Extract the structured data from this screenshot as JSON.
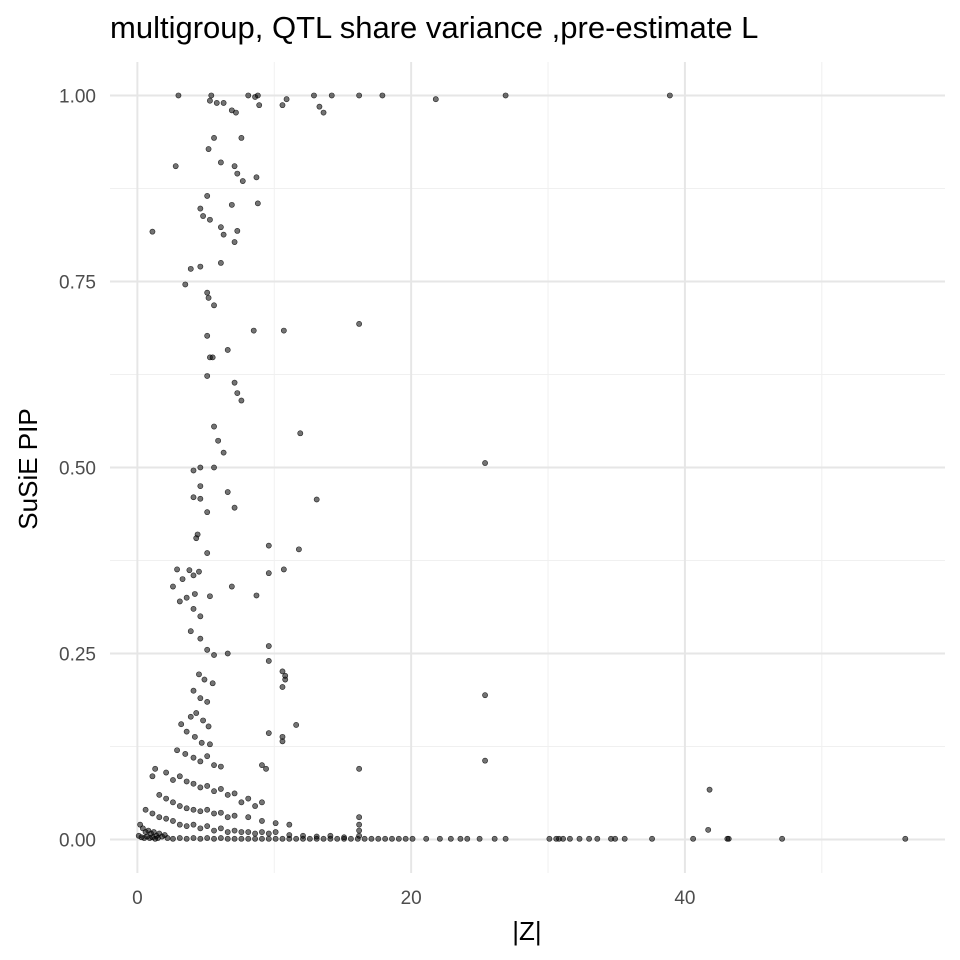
{
  "chart_data": {
    "type": "scatter",
    "title": "multigroup, QTL share variance ,pre-estimate L",
    "xlabel": "|Z|",
    "ylabel": "SuSiE PIP",
    "xlim": [
      -2,
      59
    ],
    "ylim": [
      -0.045,
      1.045
    ],
    "x_ticks": [
      0,
      20,
      40
    ],
    "x_tick_labels": [
      "0",
      "20",
      "40"
    ],
    "x_minor_ticks": [
      10,
      30,
      50
    ],
    "y_ticks": [
      0,
      0.25,
      0.5,
      0.75,
      1.0
    ],
    "y_tick_labels": [
      "0.00",
      "0.25",
      "0.50",
      "0.75",
      "1.00"
    ],
    "y_minor_ticks": [
      0.125,
      0.375,
      0.625,
      0.875
    ],
    "grid": true,
    "point_color": "#000000",
    "point_opacity": 0.55,
    "points": [
      [
        3,
        1.0
      ],
      [
        5.4,
        1.0
      ],
      [
        5.3,
        0.993
      ],
      [
        5.8,
        0.99
      ],
      [
        6.3,
        0.99
      ],
      [
        6.9,
        0.98
      ],
      [
        7.2,
        0.977
      ],
      [
        8.1,
        1.0
      ],
      [
        8.8,
        1.0
      ],
      [
        8.9,
        0.987
      ],
      [
        8.6,
        0.998
      ],
      [
        10.6,
        0.987
      ],
      [
        10.9,
        0.995
      ],
      [
        12.9,
        1.0
      ],
      [
        13.3,
        0.985
      ],
      [
        13.6,
        0.977
      ],
      [
        14.2,
        1.0
      ],
      [
        16.2,
        1.0
      ],
      [
        17.9,
        1.0
      ],
      [
        21.8,
        0.995
      ],
      [
        26.9,
        1.0
      ],
      [
        38.9,
        1.0
      ],
      [
        2.8,
        0.905
      ],
      [
        5.2,
        0.928
      ],
      [
        5.6,
        0.943
      ],
      [
        6.1,
        0.91
      ],
      [
        7.1,
        0.905
      ],
      [
        7.3,
        0.895
      ],
      [
        7.7,
        0.885
      ],
      [
        8.7,
        0.89
      ],
      [
        7.6,
        0.943
      ],
      [
        1.1,
        0.817
      ],
      [
        4.6,
        0.848
      ],
      [
        4.8,
        0.838
      ],
      [
        5.1,
        0.865
      ],
      [
        5.3,
        0.833
      ],
      [
        6.1,
        0.823
      ],
      [
        6.3,
        0.813
      ],
      [
        6.9,
        0.853
      ],
      [
        7.3,
        0.818
      ],
      [
        7.1,
        0.803
      ],
      [
        8.8,
        0.855
      ],
      [
        3.5,
        0.746
      ],
      [
        3.9,
        0.767
      ],
      [
        4.6,
        0.77
      ],
      [
        5.1,
        0.735
      ],
      [
        5.2,
        0.728
      ],
      [
        5.6,
        0.718
      ],
      [
        6.1,
        0.775
      ],
      [
        5.1,
        0.677
      ],
      [
        6.6,
        0.658
      ],
      [
        5.3,
        0.648
      ],
      [
        5.5,
        0.648
      ],
      [
        8.5,
        0.684
      ],
      [
        10.7,
        0.684
      ],
      [
        16.2,
        0.693
      ],
      [
        5.1,
        0.623
      ],
      [
        7.1,
        0.614
      ],
      [
        7.3,
        0.6
      ],
      [
        7.6,
        0.59
      ],
      [
        5.6,
        0.555
      ],
      [
        5.9,
        0.536
      ],
      [
        6.3,
        0.52
      ],
      [
        4.1,
        0.496
      ],
      [
        4.6,
        0.5
      ],
      [
        5.6,
        0.5
      ],
      [
        4.1,
        0.46
      ],
      [
        4.6,
        0.475
      ],
      [
        6.6,
        0.467
      ],
      [
        7.1,
        0.446
      ],
      [
        4.6,
        0.458
      ],
      [
        5.1,
        0.44
      ],
      [
        11.9,
        0.546
      ],
      [
        25.4,
        0.506
      ],
      [
        13.1,
        0.457
      ],
      [
        9.6,
        0.395
      ],
      [
        11.8,
        0.39
      ],
      [
        4.3,
        0.405
      ],
      [
        4.4,
        0.41
      ],
      [
        5.1,
        0.385
      ],
      [
        3.8,
        0.362
      ],
      [
        4.1,
        0.355
      ],
      [
        4.5,
        0.36
      ],
      [
        2.9,
        0.363
      ],
      [
        2.6,
        0.34
      ],
      [
        3.3,
        0.35
      ],
      [
        3.6,
        0.325
      ],
      [
        4.2,
        0.33
      ],
      [
        5.3,
        0.327
      ],
      [
        6.9,
        0.34
      ],
      [
        8.7,
        0.328
      ],
      [
        9.6,
        0.358
      ],
      [
        10.7,
        0.363
      ],
      [
        3.1,
        0.32
      ],
      [
        4.1,
        0.31
      ],
      [
        4.6,
        0.3
      ],
      [
        3.9,
        0.28
      ],
      [
        4.6,
        0.27
      ],
      [
        5.1,
        0.255
      ],
      [
        5.6,
        0.248
      ],
      [
        6.6,
        0.25
      ],
      [
        9.6,
        0.26
      ],
      [
        9.6,
        0.24
      ],
      [
        10.6,
        0.226
      ],
      [
        10.8,
        0.22
      ],
      [
        10.6,
        0.205
      ],
      [
        10.8,
        0.215
      ],
      [
        25.4,
        0.194
      ],
      [
        11.6,
        0.154
      ],
      [
        10.6,
        0.138
      ],
      [
        10.6,
        0.132
      ],
      [
        9.6,
        0.143
      ],
      [
        9.1,
        0.1
      ],
      [
        9.4,
        0.095
      ],
      [
        25.4,
        0.106
      ],
      [
        16.2,
        0.095
      ],
      [
        41.8,
        0.067
      ],
      [
        41.7,
        0.013
      ],
      [
        4.5,
        0.222
      ],
      [
        4.9,
        0.215
      ],
      [
        5.5,
        0.21
      ],
      [
        4.1,
        0.2
      ],
      [
        4.6,
        0.19
      ],
      [
        5.1,
        0.185
      ],
      [
        3.9,
        0.165
      ],
      [
        4.3,
        0.17
      ],
      [
        4.8,
        0.16
      ],
      [
        5.2,
        0.152
      ],
      [
        3.2,
        0.155
      ],
      [
        3.6,
        0.145
      ],
      [
        4.2,
        0.138
      ],
      [
        4.7,
        0.13
      ],
      [
        5.3,
        0.128
      ],
      [
        2.9,
        0.12
      ],
      [
        3.5,
        0.115
      ],
      [
        4.1,
        0.11
      ],
      [
        4.6,
        0.105
      ],
      [
        5.1,
        0.112
      ],
      [
        5.6,
        0.1
      ],
      [
        6.1,
        0.098
      ],
      [
        1.3,
        0.095
      ],
      [
        1.1,
        0.085
      ],
      [
        2.1,
        0.09
      ],
      [
        2.6,
        0.08
      ],
      [
        3.1,
        0.085
      ],
      [
        3.6,
        0.078
      ],
      [
        4.1,
        0.075
      ],
      [
        4.6,
        0.07
      ],
      [
        5.1,
        0.072
      ],
      [
        5.6,
        0.065
      ],
      [
        6.1,
        0.068
      ],
      [
        6.6,
        0.06
      ],
      [
        7.1,
        0.062
      ],
      [
        7.6,
        0.05
      ],
      [
        8.1,
        0.055
      ],
      [
        8.6,
        0.045
      ],
      [
        9.1,
        0.05
      ],
      [
        1.6,
        0.06
      ],
      [
        2.1,
        0.055
      ],
      [
        2.6,
        0.05
      ],
      [
        3.1,
        0.045
      ],
      [
        3.6,
        0.042
      ],
      [
        4.1,
        0.04
      ],
      [
        4.6,
        0.038
      ],
      [
        5.1,
        0.04
      ],
      [
        5.6,
        0.035
      ],
      [
        6.1,
        0.036
      ],
      [
        6.6,
        0.03
      ],
      [
        7.1,
        0.032
      ],
      [
        8.1,
        0.03
      ],
      [
        9.1,
        0.025
      ],
      [
        10.1,
        0.022
      ],
      [
        11.1,
        0.02
      ],
      [
        0.6,
        0.04
      ],
      [
        1.1,
        0.035
      ],
      [
        1.6,
        0.03
      ],
      [
        2.1,
        0.028
      ],
      [
        2.6,
        0.025
      ],
      [
        3.1,
        0.02
      ],
      [
        3.6,
        0.018
      ],
      [
        4.1,
        0.02
      ],
      [
        4.6,
        0.015
      ],
      [
        5.1,
        0.018
      ],
      [
        5.6,
        0.012
      ],
      [
        6.1,
        0.015
      ],
      [
        6.6,
        0.01
      ],
      [
        7.1,
        0.012
      ],
      [
        7.6,
        0.01
      ],
      [
        8.1,
        0.01
      ],
      [
        8.6,
        0.008
      ],
      [
        9.1,
        0.01
      ],
      [
        9.6,
        0.008
      ],
      [
        10.1,
        0.01
      ],
      [
        11.1,
        0.006
      ],
      [
        12.1,
        0.005
      ],
      [
        13.1,
        0.004
      ],
      [
        14.1,
        0.005
      ],
      [
        15.1,
        0.003
      ],
      [
        16.2,
        0.03
      ],
      [
        16.2,
        0.02
      ],
      [
        16.2,
        0.012
      ],
      [
        16.2,
        0.005
      ],
      [
        0.2,
        0.02
      ],
      [
        0.4,
        0.015
      ],
      [
        0.6,
        0.01
      ],
      [
        0.8,
        0.012
      ],
      [
        1.0,
        0.008
      ],
      [
        1.2,
        0.01
      ],
      [
        1.4,
        0.005
      ],
      [
        1.6,
        0.008
      ],
      [
        1.8,
        0.004
      ],
      [
        2.0,
        0.006
      ],
      [
        0.1,
        0.005
      ],
      [
        0.3,
        0.003
      ],
      [
        0.5,
        0.002
      ],
      [
        0.7,
        0.004
      ],
      [
        0.9,
        0.002
      ],
      [
        1.1,
        0.003
      ],
      [
        1.3,
        0.001
      ],
      [
        1.5,
        0.002
      ],
      [
        2.2,
        0.002
      ],
      [
        2.6,
        0.001
      ],
      [
        3.1,
        0.002
      ],
      [
        3.6,
        0.001
      ],
      [
        4.1,
        0.002
      ],
      [
        4.6,
        0.001
      ],
      [
        5.1,
        0.002
      ],
      [
        5.6,
        0.001
      ],
      [
        6.1,
        0.002
      ],
      [
        6.6,
        0.001
      ],
      [
        7.1,
        0.001
      ],
      [
        7.6,
        0.001
      ],
      [
        8.1,
        0.001
      ],
      [
        8.6,
        0.001
      ],
      [
        9.1,
        0.001
      ],
      [
        9.6,
        0.001
      ],
      [
        10.1,
        0.001
      ],
      [
        10.6,
        0.001
      ],
      [
        11.1,
        0.001
      ],
      [
        11.6,
        0.001
      ],
      [
        12.1,
        0.001
      ],
      [
        12.6,
        0.001
      ],
      [
        13.1,
        0.001
      ],
      [
        13.6,
        0.001
      ],
      [
        14.1,
        0.001
      ],
      [
        14.6,
        0.001
      ],
      [
        15.1,
        0.001
      ],
      [
        15.6,
        0.001
      ],
      [
        16.1,
        0.001
      ],
      [
        16.6,
        0.001
      ],
      [
        17.1,
        0.001
      ],
      [
        17.6,
        0.001
      ],
      [
        18.1,
        0.001
      ],
      [
        18.6,
        0.001
      ],
      [
        19.1,
        0.001
      ],
      [
        19.6,
        0.001
      ],
      [
        20.1,
        0.001
      ],
      [
        21.1,
        0.001
      ],
      [
        22.1,
        0.001
      ],
      [
        22.9,
        0.001
      ],
      [
        23.6,
        0.001
      ],
      [
        24.1,
        0.001
      ],
      [
        25.0,
        0.001
      ],
      [
        26.1,
        0.001
      ],
      [
        26.9,
        0.001
      ],
      [
        30.1,
        0.001
      ],
      [
        30.6,
        0.001
      ],
      [
        30.8,
        0.001
      ],
      [
        31.1,
        0.001
      ],
      [
        31.6,
        0.001
      ],
      [
        32.3,
        0.001
      ],
      [
        33.0,
        0.001
      ],
      [
        33.6,
        0.001
      ],
      [
        34.6,
        0.001
      ],
      [
        34.9,
        0.001
      ],
      [
        35.6,
        0.001
      ],
      [
        37.6,
        0.001
      ],
      [
        40.6,
        0.001
      ],
      [
        43.1,
        0.001
      ],
      [
        43.2,
        0.001
      ],
      [
        47.1,
        0.001
      ],
      [
        56.1,
        0.001
      ]
    ]
  }
}
